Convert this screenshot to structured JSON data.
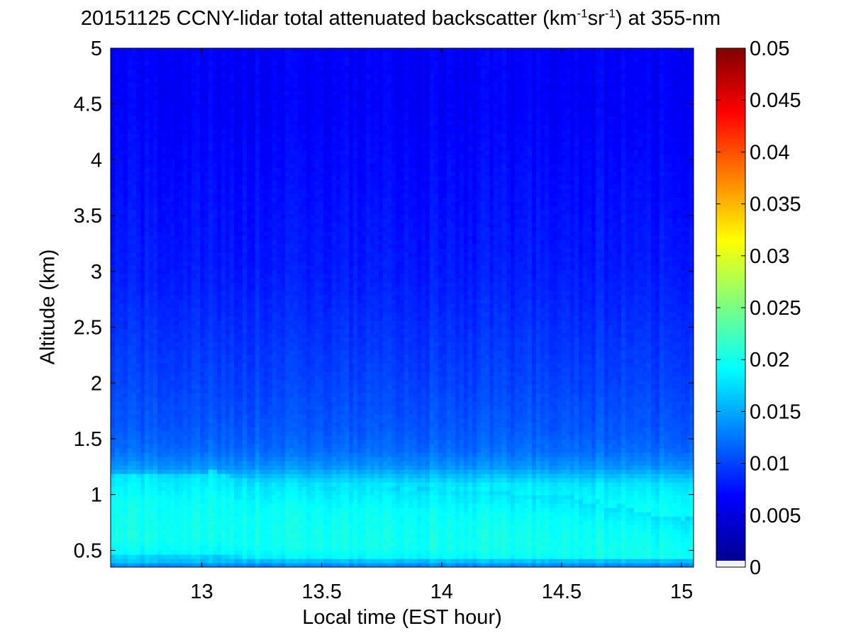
{
  "chart_data": {
    "type": "heatmap",
    "title": {
      "main": "20151125 CCNY-lidar total attenuated backscatter (km",
      "sup1": "-1",
      "mid": "sr",
      "sup2": "-1",
      "end": ") at 355-nm"
    },
    "xlabel": "Local time (EST hour)",
    "ylabel": "Altitude (km)",
    "xlim": [
      12.62,
      15.05
    ],
    "ylim": [
      0.35,
      5
    ],
    "xticks": [
      13,
      13.5,
      14,
      14.5,
      15
    ],
    "xtick_labels": [
      "13",
      "13.5",
      "14",
      "14.5",
      "15"
    ],
    "yticks": [
      0.5,
      1,
      1.5,
      2,
      2.5,
      3,
      3.5,
      4,
      4.5,
      5
    ],
    "ytick_labels": [
      "0.5",
      "1",
      "1.5",
      "2",
      "2.5",
      "3",
      "3.5",
      "4",
      "4.5",
      "5"
    ],
    "colorbar": {
      "colormap": "jet",
      "clim": [
        0,
        0.05
      ],
      "ticks": [
        0,
        0.005,
        0.01,
        0.015,
        0.02,
        0.025,
        0.03,
        0.035,
        0.04,
        0.045,
        0.05
      ],
      "tick_labels": [
        "0",
        "0.005",
        "0.01",
        "0.015",
        "0.02",
        "0.025",
        "0.03",
        "0.035",
        "0.04",
        "0.045",
        "0.05"
      ]
    },
    "backscatter_profile": {
      "altitude_km": [
        0.35,
        0.45,
        0.55,
        0.7,
        0.9,
        1.1,
        1.25,
        1.4,
        1.6,
        2.0,
        2.5,
        3.0,
        3.5,
        4.0,
        4.5,
        5.0
      ],
      "value": [
        0.012,
        0.0185,
        0.0195,
        0.0195,
        0.019,
        0.0175,
        0.0135,
        0.0115,
        0.0105,
        0.0095,
        0.0085,
        0.0075,
        0.007,
        0.0065,
        0.006,
        0.006
      ]
    },
    "boundary_layer_top": {
      "time_hour": [
        12.62,
        12.7,
        12.8,
        12.9,
        13.0,
        13.05,
        13.15,
        13.25,
        13.35,
        13.45,
        13.55,
        13.65,
        13.75,
        13.85,
        13.95,
        14.05,
        14.15,
        14.25,
        14.35,
        14.45,
        14.55,
        14.6,
        14.65,
        14.7,
        14.75,
        14.8,
        14.85,
        14.9,
        14.95,
        15.0,
        15.05
      ],
      "altitude_km": [
        1.18,
        1.19,
        1.2,
        1.17,
        1.19,
        1.22,
        1.15,
        1.1,
        1.13,
        1.09,
        1.06,
        1.1,
        1.07,
        1.05,
        1.06,
        1.04,
        1.05,
        1.02,
        1.01,
        1.0,
        0.98,
        0.92,
        0.95,
        0.88,
        0.93,
        0.86,
        0.85,
        0.8,
        0.82,
        0.78,
        0.8
      ]
    },
    "grid": false
  }
}
